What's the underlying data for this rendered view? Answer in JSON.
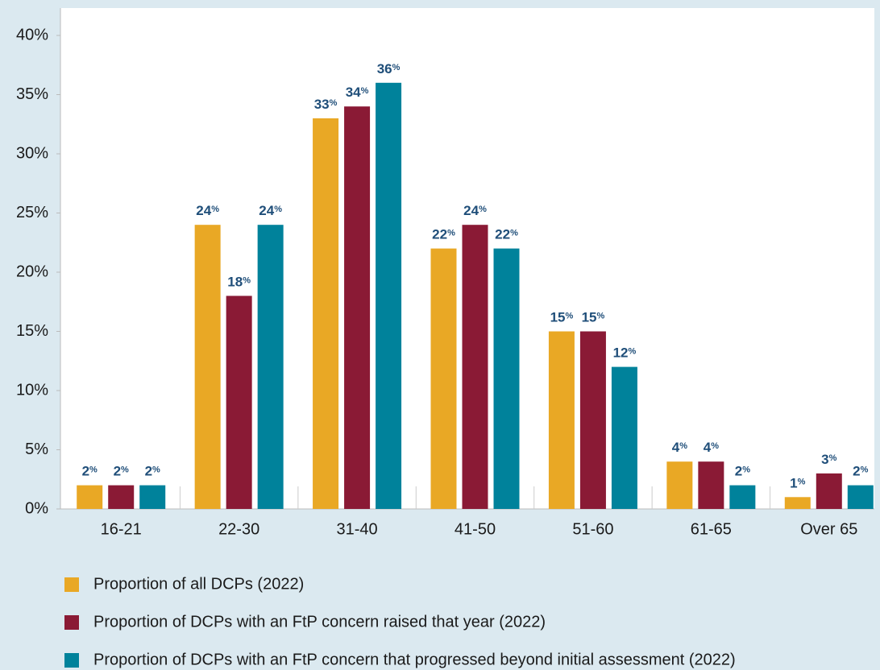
{
  "chart_data": {
    "type": "bar",
    "categories": [
      "16-21",
      "22-30",
      "31-40",
      "41-50",
      "51-60",
      "61-65",
      "Over 65"
    ],
    "series": [
      {
        "name": "Proportion of all DCPs (2022)",
        "color": "#e9a825",
        "values": [
          2,
          24,
          33,
          22,
          15,
          4,
          1
        ],
        "value_labels": [
          "2%",
          "24%",
          "33%",
          "22%",
          "15%",
          "4%",
          "1%"
        ]
      },
      {
        "name": "Proportion of DCPs with an FtP concern raised that year (2022)",
        "color": "#8a1a35",
        "values": [
          2,
          18,
          34,
          24,
          15,
          4,
          3
        ],
        "value_labels": [
          "2%",
          "18%",
          "34%",
          "24%",
          "15%",
          "4%",
          "3%"
        ]
      },
      {
        "name": "Proportion of DCPs with an FtP concern that progressed beyond initial assessment (2022)",
        "color": "#00829b",
        "values": [
          2,
          24,
          36,
          22,
          12,
          2,
          2
        ],
        "value_labels": [
          "2%",
          "24%",
          "36%",
          "22%",
          "12%",
          "2%",
          "2%"
        ]
      }
    ],
    "ylim": [
      0,
      40
    ],
    "yticks": [
      {
        "value": 0,
        "label": "0%"
      },
      {
        "value": 5,
        "label": "5%"
      },
      {
        "value": 10,
        "label": "10%"
      },
      {
        "value": 15,
        "label": "15%"
      },
      {
        "value": 20,
        "label": "20%"
      },
      {
        "value": 25,
        "label": "25%"
      },
      {
        "value": 30,
        "label": "30%"
      },
      {
        "value": 35,
        "label": "35%"
      },
      {
        "value": 40,
        "label": "40%"
      }
    ]
  }
}
